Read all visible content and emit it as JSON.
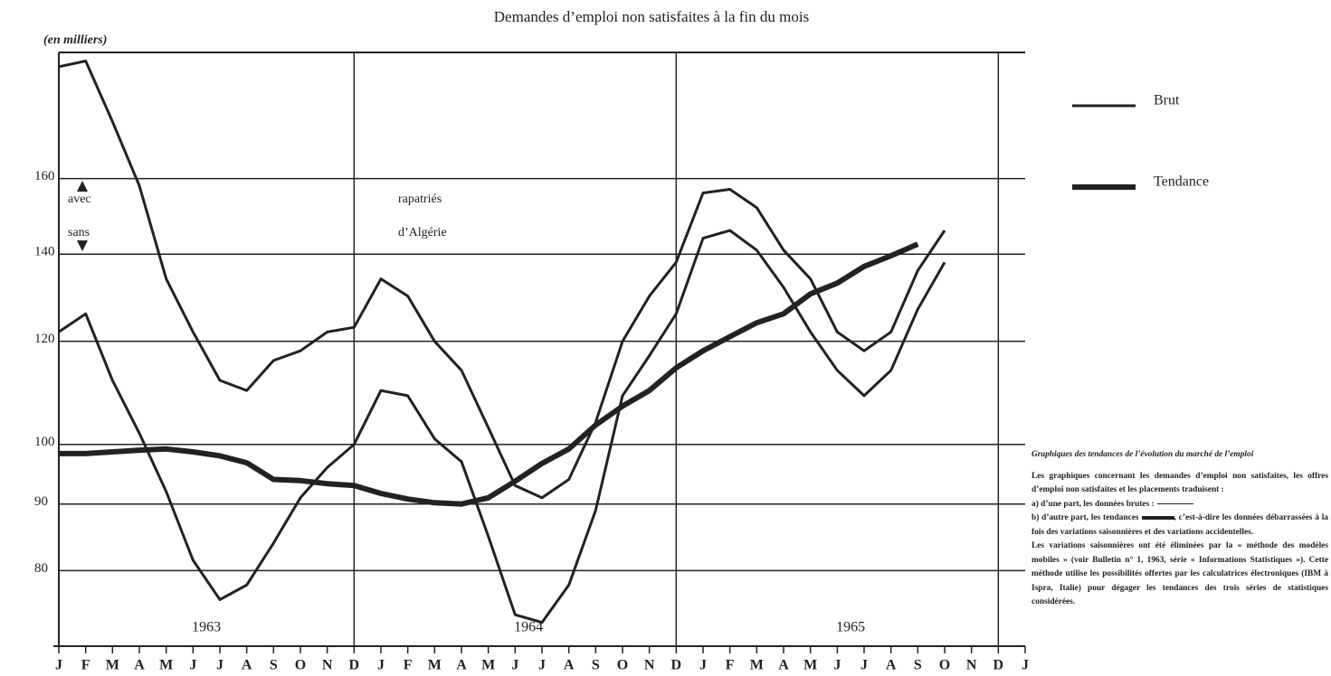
{
  "chart_data": {
    "type": "line",
    "title": "Demandes d’emploi non satisfaites à la fin du mois",
    "y_label": "(en milliers)",
    "categories": [
      "J",
      "F",
      "M",
      "A",
      "M",
      "J",
      "J",
      "A",
      "S",
      "O",
      "N",
      "D",
      "J",
      "F",
      "M",
      "A",
      "M",
      "J",
      "J",
      "A",
      "S",
      "O",
      "N",
      "D",
      "J",
      "F",
      "M",
      "A",
      "M",
      "J",
      "J",
      "A",
      "S",
      "O",
      "N",
      "D",
      "J"
    ],
    "years": [
      "1963",
      "1964",
      "1965"
    ],
    "log_scale": true,
    "ylim": [
      70,
      200
    ],
    "yticks": [
      80,
      90,
      100,
      120,
      140,
      160
    ],
    "grid": true,
    "legend_position": "right",
    "annotations": {
      "avec": "avec",
      "sans": "sans",
      "rapatries": "rapatriés",
      "algerie": "d’Algérie"
    },
    "series": [
      {
        "name": "Brut",
        "color": "#222222",
        "line_width": 3,
        "values": [
          195,
          197,
          177,
          158,
          134,
          122,
          112,
          110,
          116,
          118,
          122,
          123,
          134,
          130,
          120,
          114,
          103,
          93,
          91,
          94,
          104,
          120,
          130,
          138,
          156,
          157,
          152,
          141,
          134,
          122,
          118,
          122,
          136,
          146,
          null,
          null,
          null
        ]
      },
      {
        "name": "Brut",
        "color": "#222222",
        "line_width": 3,
        "values": [
          122,
          126,
          112,
          102,
          92,
          81.5,
          76,
          78,
          84,
          91,
          96,
          100,
          110,
          109,
          101,
          97,
          85,
          74,
          73,
          78,
          89,
          109,
          117,
          126,
          144,
          146,
          141,
          132,
          122,
          114,
          109,
          114,
          127,
          138,
          null,
          null,
          null
        ]
      },
      {
        "name": "Tendance",
        "color": "#222222",
        "line_width": 6,
        "values": [
          98.4,
          98.4,
          98.7,
          99,
          99.2,
          98.7,
          98,
          96.8,
          94,
          93.8,
          93.3,
          93,
          91.7,
          90.8,
          90.2,
          90,
          91,
          93.7,
          96.7,
          99.2,
          103.5,
          107,
          110,
          114.5,
          118,
          121,
          124,
          126,
          130.5,
          133,
          137,
          139.6,
          142.5,
          null,
          null,
          null,
          null
        ]
      }
    ],
    "note": {
      "title": "Graphiques des tendances de l’évolution du marché de l’emploi",
      "p1": "Les graphiques concernant les demandes d’emploi non satisfaites, les offres d’emploi non satisfaites et les placements traduisent :",
      "p2": "a) d’une part, les données brutes :",
      "p3a": "b) d’autre part, les tendances",
      "p3b": ", c’est-à-dire les données débarrassées à la fois des variations saisonnières et des variations accidentelles.",
      "p4": "Les variations saisonnières ont été éliminées par la « méthode des modèles mobiles » (voir Bulletin n° 1, 1963, série « Informations Statistiques »). Cette méthode utilise les possibilités offertes par les calculatrices électroniques (IBM à Ispra, Italie) pour dégager les tendances des trois séries de statistiques considérées."
    }
  }
}
